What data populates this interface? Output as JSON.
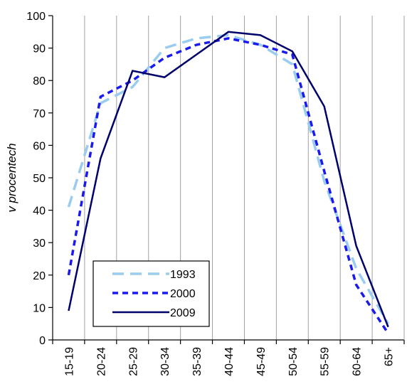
{
  "chart_data": {
    "type": "line",
    "title": "",
    "xlabel": "",
    "ylabel": "v procentech",
    "ylim": [
      0,
      100
    ],
    "yticks": [
      0,
      10,
      20,
      30,
      40,
      50,
      60,
      70,
      80,
      90,
      100
    ],
    "categories": [
      "15-19",
      "20-24",
      "25-29",
      "30-34",
      "35-39",
      "40-44",
      "45-49",
      "50-54",
      "55-59",
      "60-64",
      "65+"
    ],
    "grid": "vertical",
    "legend_position": "bottom-left",
    "series": [
      {
        "name": "1993",
        "color": "#99ccee",
        "dash": "long-dash",
        "values": [
          41,
          73,
          78,
          90,
          93,
          94,
          91,
          85,
          49,
          22,
          5
        ]
      },
      {
        "name": "2000",
        "color": "#1a1aee",
        "dash": "dash",
        "values": [
          20,
          75,
          80,
          87,
          91,
          93,
          91,
          88,
          52,
          17,
          2
        ]
      },
      {
        "name": "2009",
        "color": "#00006b",
        "dash": "solid",
        "values": [
          9,
          56,
          83,
          81,
          88,
          95,
          94,
          89,
          72,
          29,
          4
        ]
      }
    ]
  }
}
